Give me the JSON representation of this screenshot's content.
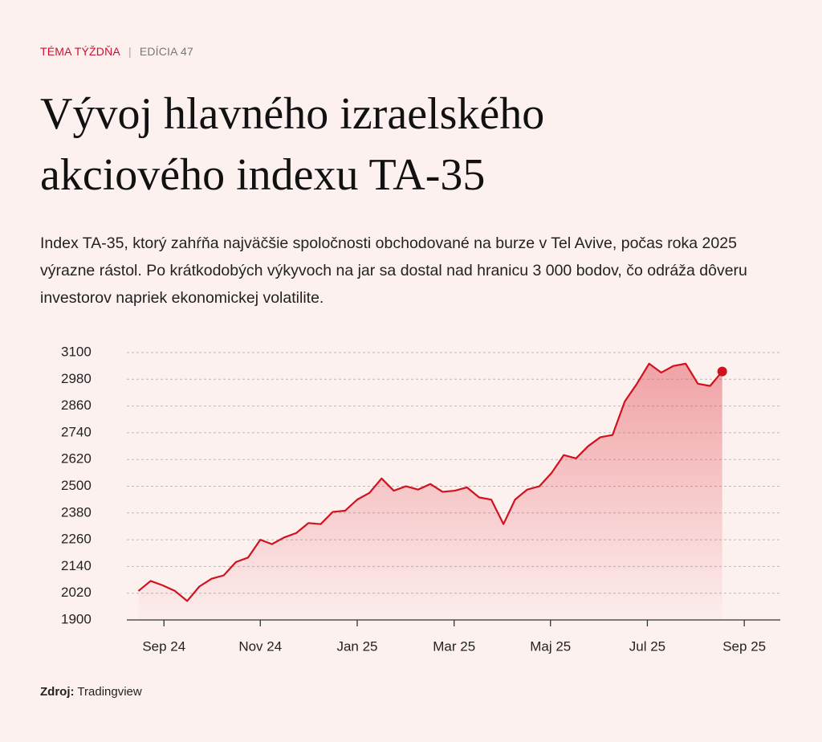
{
  "header": {
    "kicker": "TÉMA TÝŽDŇA",
    "edition": "EDÍCIA 47"
  },
  "chart_data": {
    "type": "line",
    "title": "Vývoj hlavného izraelského akciového indexu TA-35",
    "subtitle": "Index TA-35, ktorý zahŕňa najväčšie spoločnosti obchodované na burze v Tel Avive, počas roka 2025 výrazne rástol. Po krátkodobých výkyvoch na jar sa dostal nad hranicu 3 000 bodov, čo odráža dôveru investorov napriek ekonomickej volatilite.",
    "x": [
      2024.623,
      2024.644,
      2024.665,
      2024.686,
      2024.707,
      2024.728,
      2024.749,
      2024.77,
      2024.791,
      2024.812,
      2024.833,
      2024.853,
      2024.874,
      2024.895,
      2024.916,
      2024.937,
      2024.958,
      2024.979,
      2025.0,
      2025.021,
      2025.042,
      2025.063,
      2025.084,
      2025.105,
      2025.126,
      2025.147,
      2025.168,
      2025.189,
      2025.21,
      2025.231,
      2025.252,
      2025.272,
      2025.293,
      2025.314,
      2025.335,
      2025.356,
      2025.377,
      2025.398,
      2025.419,
      2025.44,
      2025.461,
      2025.482,
      2025.503,
      2025.524,
      2025.545,
      2025.566,
      2025.587,
      2025.608,
      2025.629
    ],
    "series": [
      {
        "name": "TA-35",
        "color": "#d0121f",
        "values": [
          2030,
          2075,
          2055,
          2030,
          1985,
          2050,
          2085,
          2100,
          2160,
          2180,
          2260,
          2240,
          2270,
          2290,
          2335,
          2330,
          2385,
          2390,
          2440,
          2470,
          2535,
          2480,
          2500,
          2485,
          2510,
          2475,
          2480,
          2495,
          2450,
          2440,
          2330,
          2440,
          2485,
          2500,
          2560,
          2640,
          2625,
          2680,
          2720,
          2730,
          2880,
          2960,
          3050,
          3010,
          3040,
          3050,
          2960,
          2950,
          3015
        ]
      }
    ],
    "xlim": [
      2024.603,
      2025.729
    ],
    "xticks": [
      {
        "value": 2024.667,
        "label": "Sep 24"
      },
      {
        "value": 2024.833,
        "label": "Nov 24"
      },
      {
        "value": 2025.0,
        "label": "Jan 25"
      },
      {
        "value": 2025.167,
        "label": "Mar 25"
      },
      {
        "value": 2025.333,
        "label": "Maj 25"
      },
      {
        "value": 2025.5,
        "label": "Jul 25"
      },
      {
        "value": 2025.667,
        "label": "Sep 25"
      }
    ],
    "ylim": [
      1900,
      3100
    ],
    "yticks": [
      1900,
      2020,
      2140,
      2260,
      2380,
      2500,
      2620,
      2740,
      2860,
      2980,
      3100
    ],
    "grid": true,
    "source_label": "Zdroj:",
    "source": "Tradingview"
  }
}
